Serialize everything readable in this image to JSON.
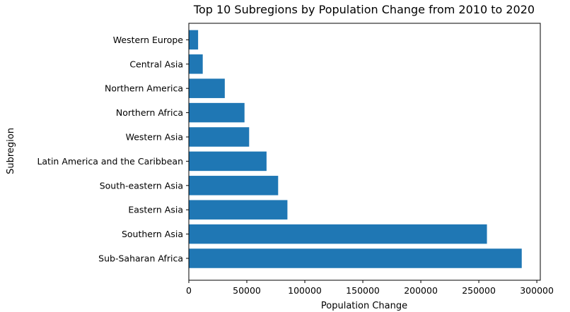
{
  "chart_data": {
    "type": "bar",
    "orientation": "horizontal",
    "title": "Top 10 Subregions by Population Change from 2010 to 2020",
    "xlabel": "Population Change",
    "ylabel": "Subregion",
    "categories": [
      "Sub-Saharan Africa",
      "Southern Asia",
      "Eastern Asia",
      "South-eastern Asia",
      "Latin America and the Caribbean",
      "Western Asia",
      "Northern Africa",
      "Northern America",
      "Central Asia",
      "Western Europe"
    ],
    "values": [
      287000,
      257000,
      85000,
      77000,
      67000,
      52000,
      48000,
      31000,
      12000,
      8000
    ],
    "xlim": [
      0,
      303000
    ],
    "xticks": [
      0,
      50000,
      100000,
      150000,
      200000,
      250000,
      300000
    ],
    "xtick_labels": [
      "0",
      "50000",
      "100000",
      "150000",
      "200000",
      "250000",
      "300000"
    ],
    "grid": false,
    "bar_color": "#1f77b4"
  }
}
